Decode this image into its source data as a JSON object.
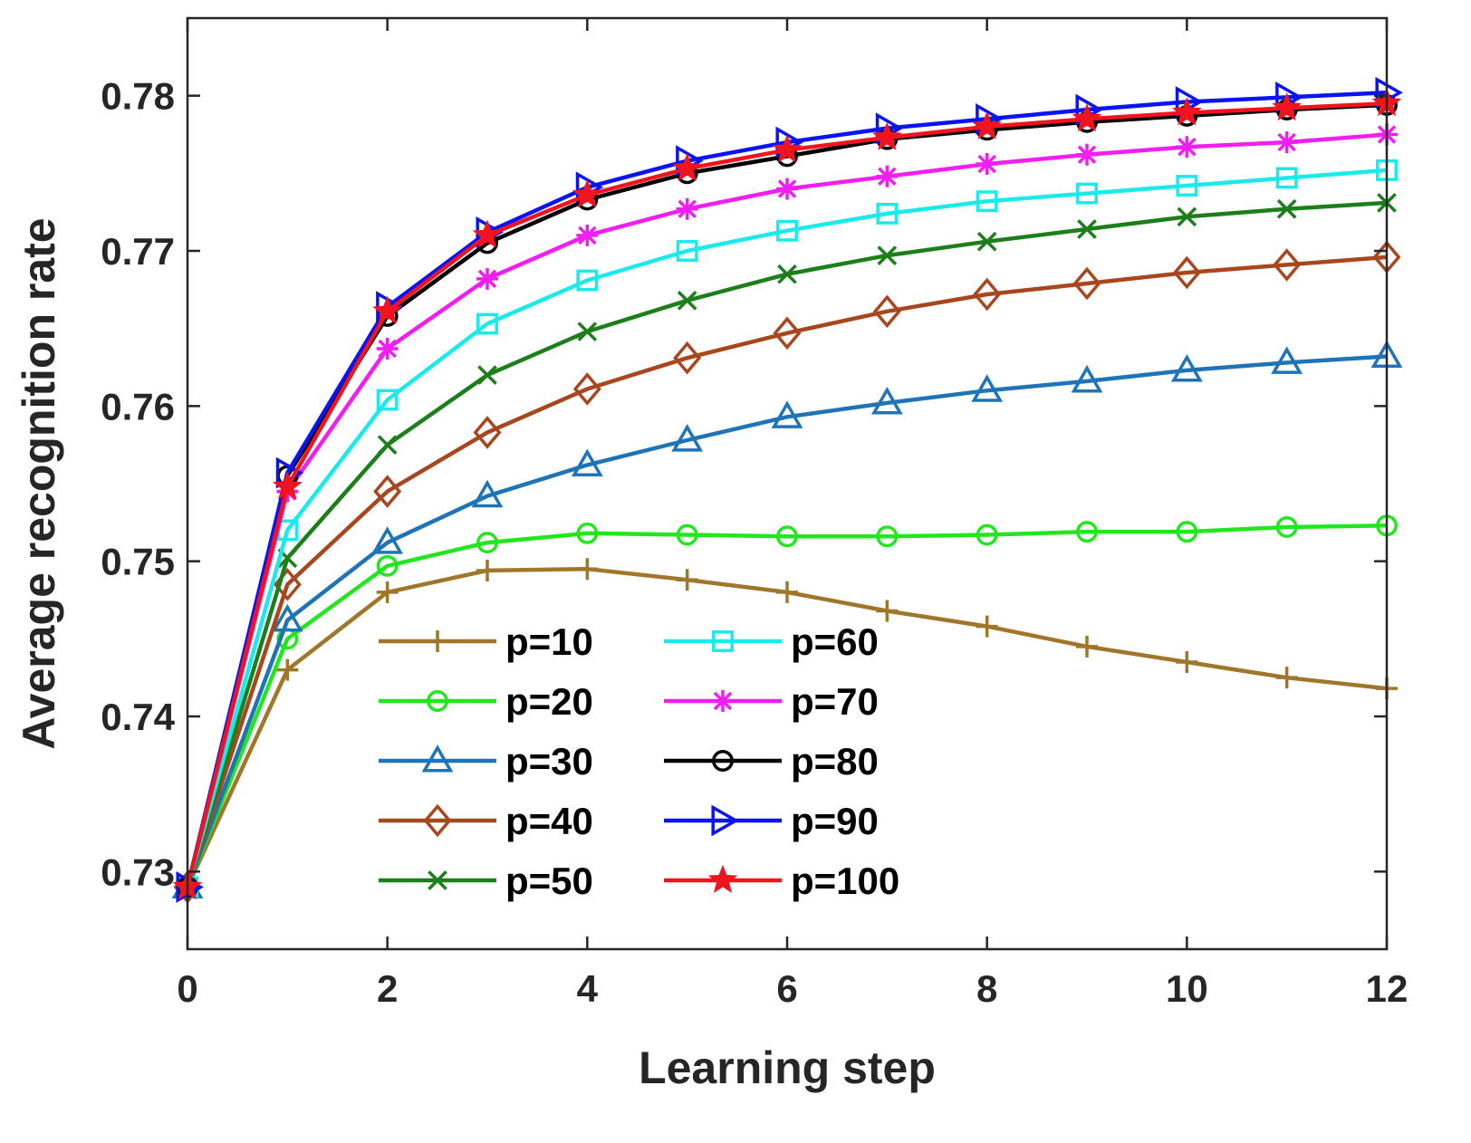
{
  "chart_data": {
    "type": "line",
    "title": "",
    "xlabel": "Learning step",
    "ylabel": "Average recognition rate",
    "xlim": [
      0,
      12
    ],
    "ylim": [
      0.725,
      0.785
    ],
    "xticks": [
      0,
      2,
      4,
      6,
      8,
      10,
      12
    ],
    "xtick_labels": [
      "0",
      "2",
      "4",
      "6",
      "8",
      "10",
      "12"
    ],
    "yticks": [
      0.73,
      0.74,
      0.75,
      0.76,
      0.77,
      0.78
    ],
    "ytick_labels": [
      "0.73",
      "0.74",
      "0.75",
      "0.76",
      "0.77",
      "0.78"
    ],
    "grid": false,
    "legend_position": "bottom-left, two columns",
    "x": [
      0,
      1,
      2,
      3,
      4,
      5,
      6,
      7,
      8,
      9,
      10,
      11,
      12
    ],
    "series": [
      {
        "name": "p=10",
        "color": "#A0762A",
        "marker": "plus",
        "values": [
          0.729,
          0.743,
          0.748,
          0.7494,
          0.7495,
          0.7488,
          0.748,
          0.7468,
          0.7458,
          0.7445,
          0.7435,
          0.7425,
          0.7418
        ]
      },
      {
        "name": "p=20",
        "color": "#22E61E",
        "marker": "circle",
        "values": [
          0.729,
          0.745,
          0.7497,
          0.7512,
          0.7518,
          0.7517,
          0.7516,
          0.7516,
          0.7517,
          0.7519,
          0.7519,
          0.7522,
          0.7523
        ]
      },
      {
        "name": "p=30",
        "color": "#1F74B8",
        "marker": "triangle-up",
        "values": [
          0.729,
          0.7462,
          0.7512,
          0.7542,
          0.7562,
          0.7578,
          0.7593,
          0.7602,
          0.761,
          0.7616,
          0.7623,
          0.7628,
          0.7632
        ]
      },
      {
        "name": "p=40",
        "color": "#A8461E",
        "marker": "diamond",
        "values": [
          0.729,
          0.7485,
          0.7545,
          0.7583,
          0.7611,
          0.7631,
          0.7647,
          0.7661,
          0.7672,
          0.7679,
          0.7686,
          0.7691,
          0.7696
        ]
      },
      {
        "name": "p=50",
        "color": "#1C7F1A",
        "marker": "x",
        "values": [
          0.729,
          0.7502,
          0.7575,
          0.762,
          0.7648,
          0.7668,
          0.7685,
          0.7697,
          0.7706,
          0.7714,
          0.7722,
          0.7727,
          0.7731
        ]
      },
      {
        "name": "p=60",
        "color": "#1AEAEA",
        "marker": "square",
        "values": [
          0.729,
          0.752,
          0.7604,
          0.7653,
          0.7681,
          0.77,
          0.7713,
          0.7724,
          0.7732,
          0.7737,
          0.7742,
          0.7747,
          0.7752
        ]
      },
      {
        "name": "p=70",
        "color": "#F01EF0",
        "marker": "asterisk",
        "values": [
          0.729,
          0.7545,
          0.7637,
          0.7682,
          0.771,
          0.7727,
          0.774,
          0.7748,
          0.7756,
          0.7762,
          0.7767,
          0.777,
          0.7775
        ]
      },
      {
        "name": "p=80",
        "color": "#000000",
        "marker": "circle",
        "values": [
          0.729,
          0.7555,
          0.7658,
          0.7705,
          0.7733,
          0.775,
          0.7761,
          0.7772,
          0.7778,
          0.7783,
          0.7787,
          0.7791,
          0.7794
        ]
      },
      {
        "name": "p=90",
        "color": "#0A14F0",
        "marker": "triangle-right",
        "values": [
          0.729,
          0.7557,
          0.7664,
          0.7712,
          0.7741,
          0.7758,
          0.777,
          0.7779,
          0.7785,
          0.7791,
          0.7796,
          0.7799,
          0.7802
        ]
      },
      {
        "name": "p=100",
        "color": "#F0141E",
        "marker": "star",
        "values": [
          0.729,
          0.7548,
          0.7661,
          0.771,
          0.7736,
          0.7753,
          0.7765,
          0.7773,
          0.778,
          0.7785,
          0.7789,
          0.7792,
          0.7795
        ]
      }
    ]
  }
}
